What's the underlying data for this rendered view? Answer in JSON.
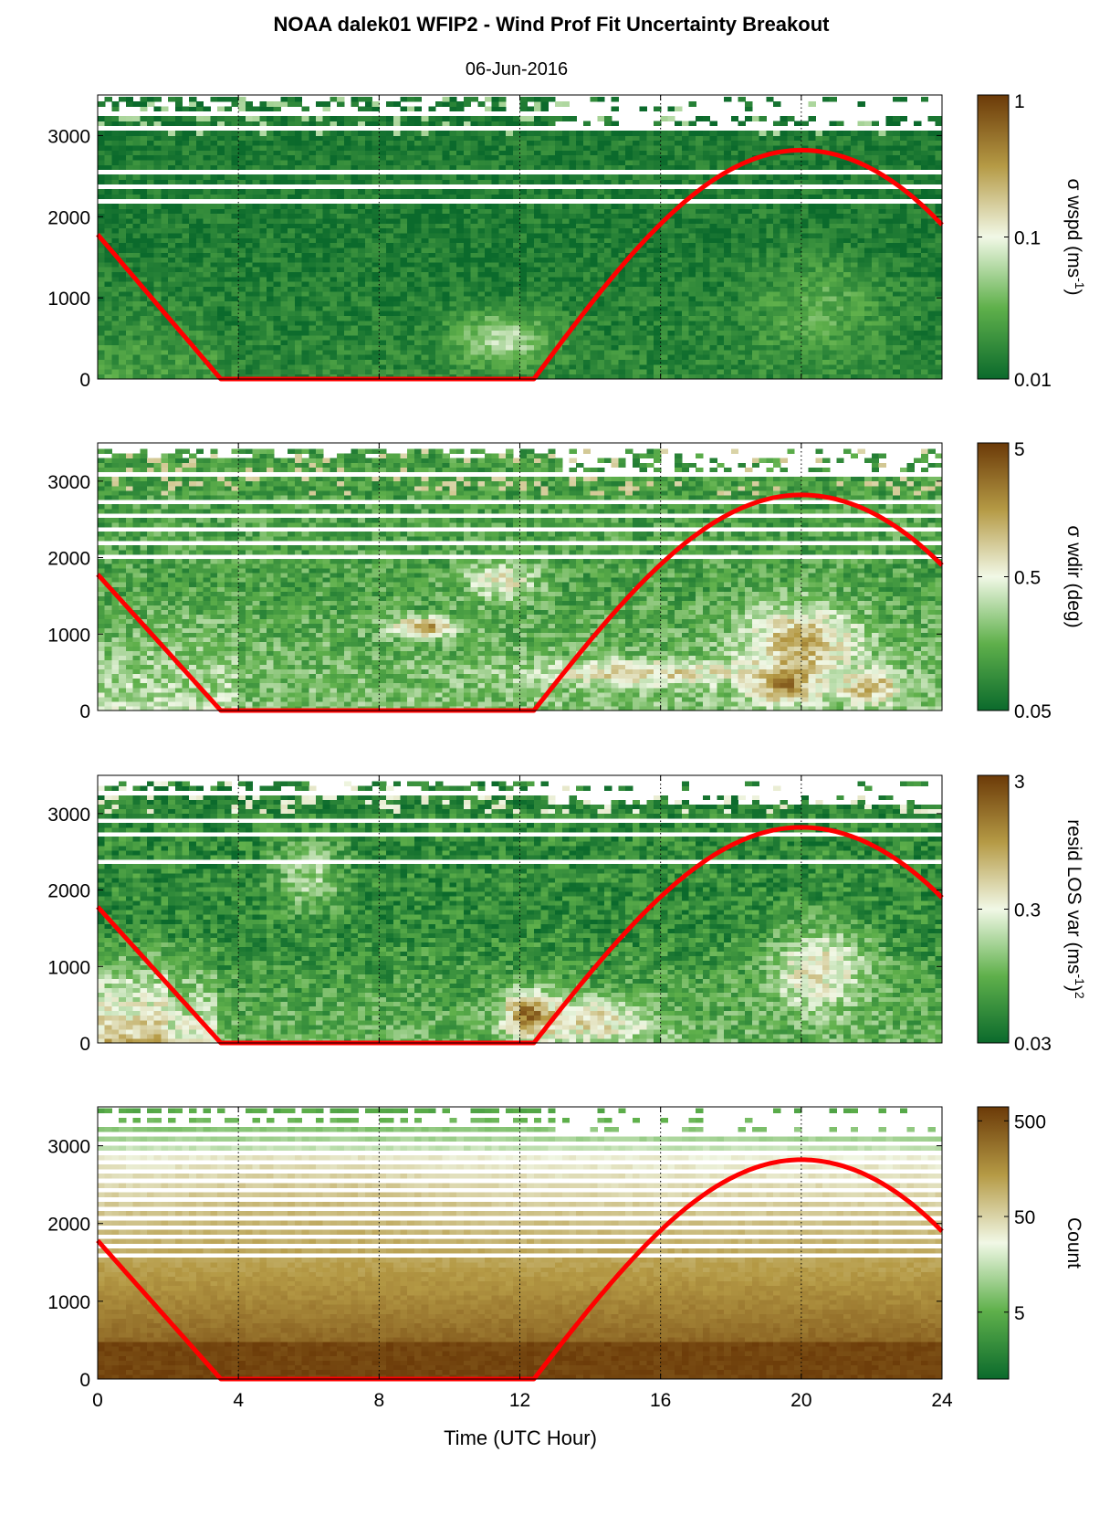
{
  "title": "NOAA dalek01 WFIP2 - Wind Prof Fit Uncertainty Breakout",
  "subtitle": "06-Jun-2016",
  "xlabel": "Time (UTC Hour)",
  "colors": {
    "low": "#0b6a2c",
    "mid": "#f1f8e6",
    "high": "#6b3a08",
    "sun_curve": "#ff0000",
    "axis": "#000000"
  },
  "chart_data": [
    {
      "type": "heatmap",
      "x_ticks": [
        "0",
        "4",
        "8",
        "12",
        "16",
        "20",
        "24"
      ],
      "xlim": [
        0,
        24
      ],
      "y_ticks": [
        "0",
        "1000",
        "2000",
        "3000"
      ],
      "ylim": [
        0,
        3500
      ],
      "grid": "dotted vertical at 4, 8, 12, 16, 20",
      "colorbar": {
        "label": "σ wspd (ms",
        "label_sup": "-1",
        "label_tail": ")",
        "label_tail_sup": "",
        "scale": "log",
        "ticks": [
          "0.01",
          "0.1",
          "1"
        ],
        "range": [
          0.01,
          1
        ]
      },
      "overlay_line": {
        "x": [
          0,
          3.5,
          12.4,
          20,
          24
        ],
        "y": [
          1780,
          0,
          0,
          2820,
          1900
        ]
      }
    },
    {
      "type": "heatmap",
      "x_ticks": [
        "0",
        "4",
        "8",
        "12",
        "16",
        "20",
        "24"
      ],
      "xlim": [
        0,
        24
      ],
      "y_ticks": [
        "0",
        "1000",
        "2000",
        "3000"
      ],
      "ylim": [
        0,
        3500
      ],
      "grid": "dotted vertical at 4, 8, 12, 16, 20",
      "colorbar": {
        "label": "σ wdir (deg)",
        "label_sup": "",
        "label_tail": "",
        "label_tail_sup": "",
        "scale": "log",
        "ticks": [
          "0.05",
          "0.5",
          "5"
        ],
        "range": [
          0.05,
          5
        ]
      },
      "overlay_line": {
        "x": [
          0,
          3.5,
          12.4,
          20,
          24
        ],
        "y": [
          1780,
          0,
          0,
          2820,
          1900
        ]
      }
    },
    {
      "type": "heatmap",
      "x_ticks": [
        "0",
        "4",
        "8",
        "12",
        "16",
        "20",
        "24"
      ],
      "xlim": [
        0,
        24
      ],
      "y_ticks": [
        "0",
        "1000",
        "2000",
        "3000"
      ],
      "ylim": [
        0,
        3500
      ],
      "grid": "dotted vertical at 4, 8, 12, 16, 20",
      "colorbar": {
        "label": "resid LOS var (ms",
        "label_sup": "-1",
        "label_tail": ")",
        "label_tail_sup": "2",
        "scale": "log",
        "ticks": [
          "0.03",
          "0.3",
          "3"
        ],
        "range": [
          0.03,
          3
        ]
      },
      "overlay_line": {
        "x": [
          0,
          3.5,
          12.4,
          20,
          24
        ],
        "y": [
          1780,
          0,
          0,
          2820,
          1900
        ]
      }
    },
    {
      "type": "heatmap",
      "x_ticks": [
        "0",
        "4",
        "8",
        "12",
        "16",
        "20",
        "24"
      ],
      "xlim": [
        0,
        24
      ],
      "y_ticks": [
        "0",
        "1000",
        "2000",
        "3000"
      ],
      "ylim": [
        0,
        3500
      ],
      "grid": "dotted vertical at 4, 8, 12, 16, 20",
      "colorbar": {
        "label": "Count",
        "label_sup": "",
        "label_tail": "",
        "label_tail_sup": "",
        "scale": "log",
        "ticks": [
          "5",
          "50",
          "500"
        ],
        "range": [
          1,
          700
        ]
      },
      "overlay_line": {
        "x": [
          0,
          3.5,
          12.4,
          20,
          24
        ],
        "y": [
          1780,
          0,
          0,
          2820,
          1900
        ]
      }
    }
  ]
}
